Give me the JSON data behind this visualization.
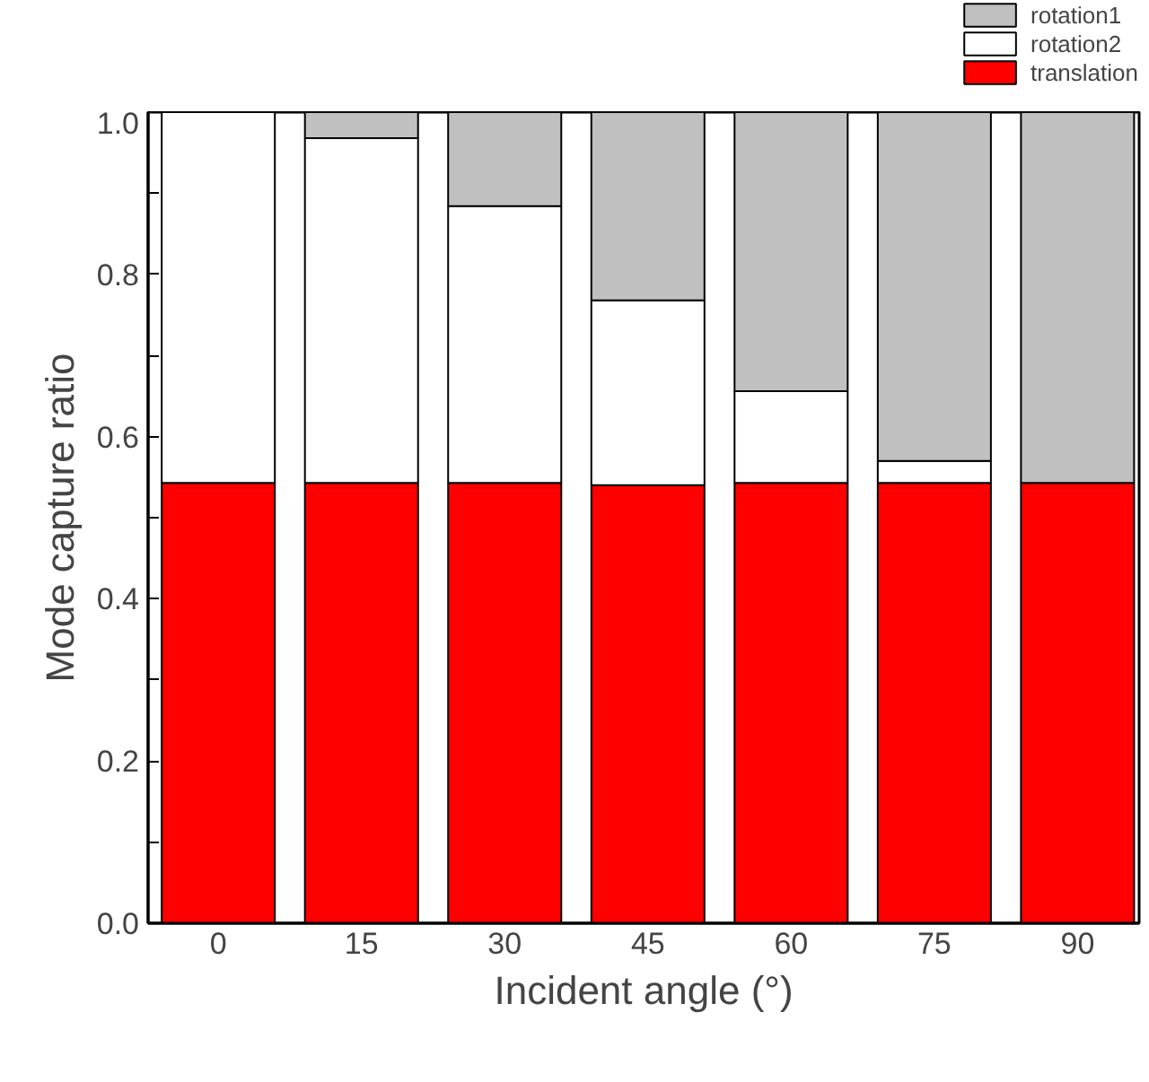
{
  "chart_data": {
    "type": "bar",
    "stacked": true,
    "xlabel": "Incident angle (°)",
    "ylabel": "Mode capture ratio",
    "categories": [
      "0",
      "15",
      "30",
      "45",
      "60",
      "75",
      "90"
    ],
    "series": [
      {
        "name": "translation",
        "color": "#ff0000",
        "values": [
          0.543,
          0.543,
          0.543,
          0.54,
          0.543,
          0.543,
          0.543
        ]
      },
      {
        "name": "rotation2",
        "color": "#ffffff",
        "values": [
          0.457,
          0.425,
          0.341,
          0.228,
          0.113,
          0.027,
          0
        ]
      },
      {
        "name": "rotation1",
        "color": "#c0c0c0",
        "values": [
          0,
          0.032,
          0.116,
          0.232,
          0.344,
          0.43,
          0.457
        ]
      }
    ],
    "ylim": [
      0,
      1.0
    ],
    "yticks": [
      {
        "value": 0,
        "label": "0.0"
      },
      {
        "value": 0.1,
        "label": null
      },
      {
        "value": 0.2,
        "label": "0.2"
      },
      {
        "value": 0.3,
        "label": null
      },
      {
        "value": 0.4,
        "label": "0.4"
      },
      {
        "value": 0.5,
        "label": null
      },
      {
        "value": 0.6,
        "label": "0.6"
      },
      {
        "value": 0.7,
        "label": null
      },
      {
        "value": 0.8,
        "label": "0.8"
      },
      {
        "value": 0.9,
        "label": null
      },
      {
        "value": 1.0,
        "label": "1.0"
      }
    ],
    "grid": false,
    "legend": "top right"
  }
}
